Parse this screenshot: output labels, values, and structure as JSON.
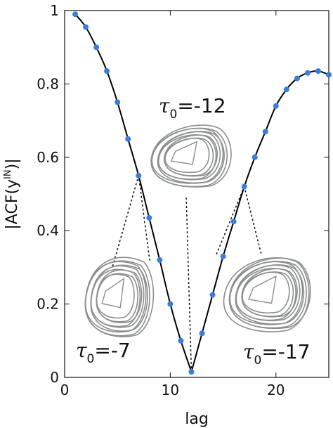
{
  "chart_data": {
    "type": "line",
    "xlabel": "lag",
    "ylabel": "|ACF(y",
    "ylabel_sup": "IN",
    "ylabel_close": ")|",
    "xlim": [
      0,
      25
    ],
    "ylim": [
      0,
      1
    ],
    "xticks": [
      0,
      10,
      20
    ],
    "yticks": [
      0,
      0.2,
      0.4,
      0.6,
      0.8,
      1
    ],
    "grid": false,
    "series": [
      {
        "style": "line",
        "color": "#000000",
        "x": [
          1,
          2,
          3,
          4,
          5,
          6,
          7,
          8,
          9,
          10,
          11,
          12,
          13,
          14,
          15,
          16,
          17,
          18,
          19,
          20,
          21,
          22,
          23,
          24,
          25
        ],
        "y": [
          0.99,
          0.955,
          0.9,
          0.835,
          0.75,
          0.65,
          0.55,
          0.435,
          0.32,
          0.2,
          0.1,
          0.015,
          0.12,
          0.225,
          0.33,
          0.425,
          0.52,
          0.6,
          0.67,
          0.74,
          0.785,
          0.815,
          0.83,
          0.835,
          0.825
        ]
      },
      {
        "style": "markers",
        "color": "#3b7ddd",
        "x": [
          1,
          2,
          3,
          4,
          5,
          6,
          7,
          8,
          9,
          10,
          11,
          12,
          13,
          14,
          15,
          16,
          17,
          18,
          19,
          20,
          21,
          22,
          23,
          24,
          25
        ],
        "y": [
          0.99,
          0.955,
          0.9,
          0.835,
          0.75,
          0.65,
          0.55,
          0.435,
          0.32,
          0.2,
          0.1,
          0.015,
          0.12,
          0.225,
          0.33,
          0.425,
          0.52,
          0.6,
          0.67,
          0.74,
          0.785,
          0.815,
          0.83,
          0.835,
          0.825
        ]
      }
    ],
    "annotations": [
      {
        "sym": "τ",
        "sub": "0",
        "value": "=-12",
        "lag": 12,
        "acf": 0.015
      },
      {
        "sym": "τ",
        "sub": "0",
        "value": "=-7",
        "lag": 7,
        "acf": 0.55
      },
      {
        "sym": "τ",
        "sub": "0",
        "value": "=-17",
        "lag": 17,
        "acf": 0.52
      }
    ],
    "attractor_color": "#8c8f8e"
  }
}
